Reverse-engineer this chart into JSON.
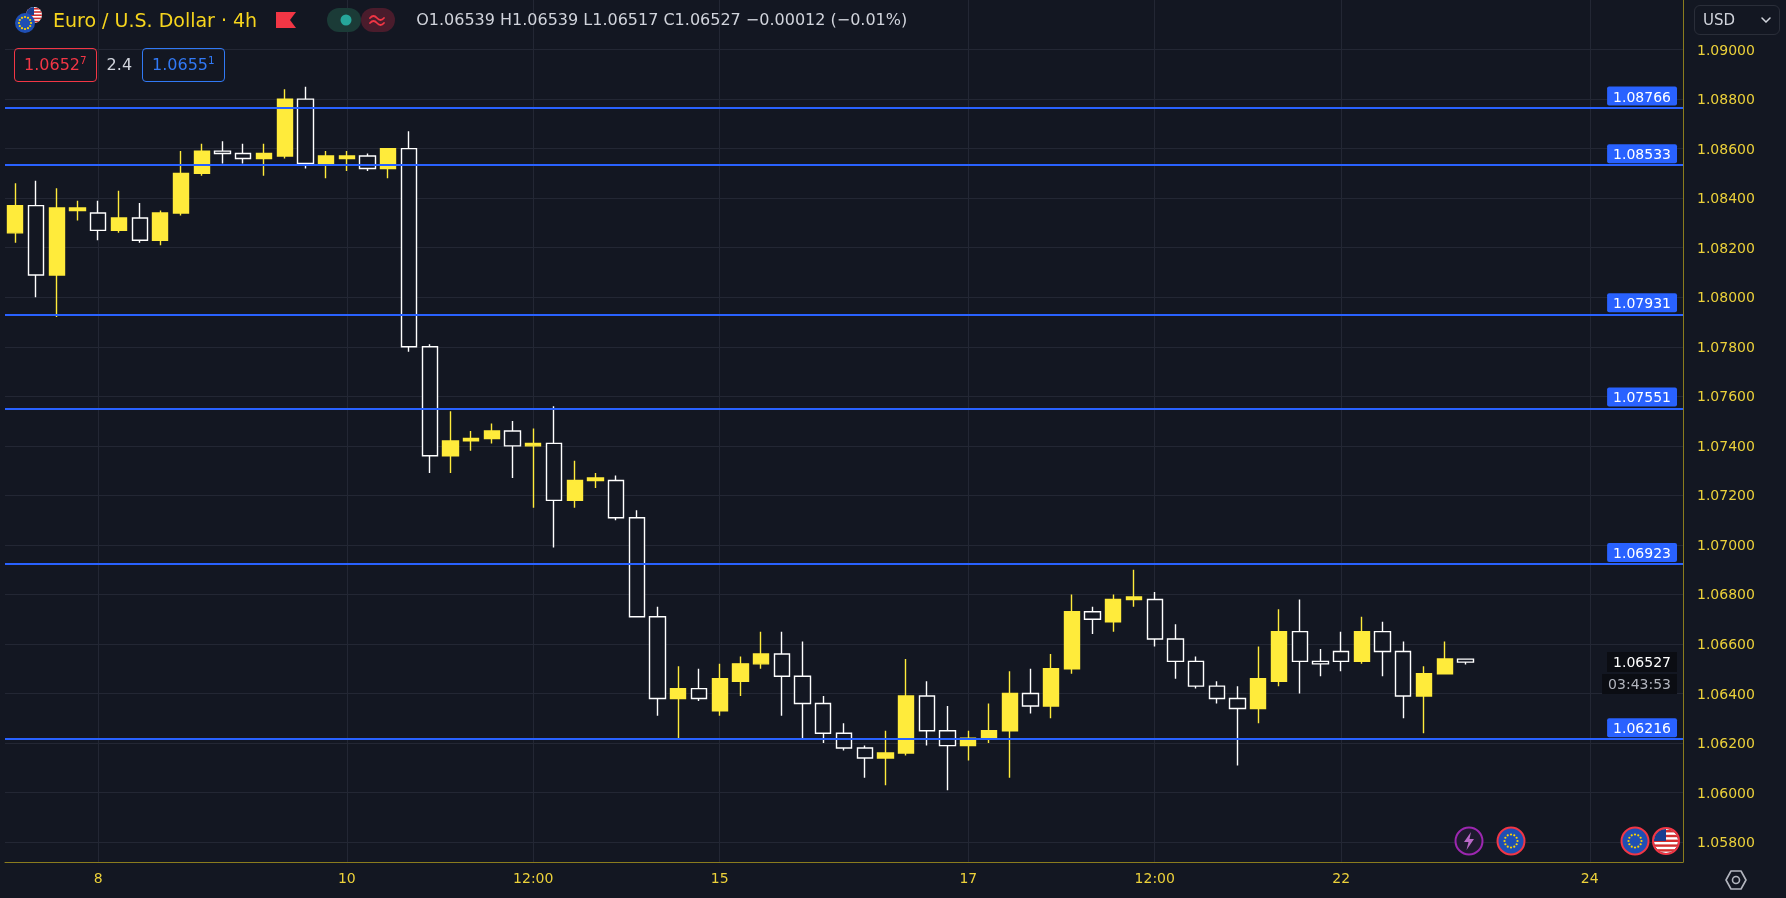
{
  "chart_data": {
    "type": "candlestick",
    "title": "Euro / U.S. Dollar · 4h",
    "subtitle": "O1.06539 H1.06539 L1.06517 C1.06527 −0.00012 (−0.01%)",
    "categories": [
      null,
      null,
      null,
      null,
      "8",
      null,
      null,
      null,
      null,
      null,
      null,
      null,
      null,
      null,
      null,
      null,
      "10",
      null,
      null,
      null,
      null,
      null,
      null,
      null,
      null,
      "12:00",
      null,
      null,
      null,
      null,
      null,
      null,
      null,
      null,
      "15",
      null,
      null,
      null,
      null,
      null,
      null,
      null,
      null,
      null,
      null,
      null,
      "17",
      null,
      null,
      null,
      null,
      null,
      null,
      null,
      null,
      "12:00",
      null,
      null,
      null,
      null,
      null,
      null,
      null,
      null,
      "22",
      null,
      null,
      null,
      null,
      null,
      null,
      null,
      null,
      null,
      null,
      null,
      "24",
      null,
      null,
      null,
      null
    ],
    "ohlc": [
      [
        1.0826,
        1.0846,
        1.0822,
        1.0837
      ],
      [
        1.0837,
        1.0847,
        1.08,
        1.0809
      ],
      [
        1.0809,
        1.0844,
        1.0792,
        1.0836
      ],
      [
        1.0835,
        1.0839,
        1.0831,
        1.0836
      ],
      [
        1.0834,
        1.0839,
        1.0823,
        1.0827
      ],
      [
        1.0827,
        1.0843,
        1.0826,
        1.0832
      ],
      [
        1.0832,
        1.0838,
        1.0822,
        1.0823
      ],
      [
        1.0823,
        1.0835,
        1.0821,
        1.0834
      ],
      [
        1.0834,
        1.0859,
        1.0833,
        1.085
      ],
      [
        1.085,
        1.0862,
        1.0849,
        1.0859
      ],
      [
        1.0859,
        1.0863,
        1.0854,
        1.0858
      ],
      [
        1.0858,
        1.0862,
        1.0854,
        1.0856
      ],
      [
        1.0856,
        1.0862,
        1.0849,
        1.0858
      ],
      [
        1.0857,
        1.0884,
        1.0856,
        1.088
      ],
      [
        1.088,
        1.0885,
        1.0852,
        1.0854
      ],
      [
        1.0854,
        1.0859,
        1.0848,
        1.0857
      ],
      [
        1.0856,
        1.0859,
        1.0851,
        1.0857
      ],
      [
        1.0857,
        1.0858,
        1.0851,
        1.0852
      ],
      [
        1.0852,
        1.086,
        1.0848,
        1.086
      ],
      [
        1.086,
        1.0867,
        1.0778,
        1.078
      ],
      [
        1.078,
        1.0781,
        1.0729,
        1.0736
      ],
      [
        1.0736,
        1.0754,
        1.0729,
        1.0742
      ],
      [
        1.0742,
        1.0746,
        1.0738,
        1.0743
      ],
      [
        1.0743,
        1.0749,
        1.0741,
        1.0746
      ],
      [
        1.0746,
        1.075,
        1.0727,
        1.074
      ],
      [
        1.074,
        1.0747,
        1.0715,
        1.0741
      ],
      [
        1.0741,
        1.0756,
        1.0699,
        1.0718
      ],
      [
        1.0718,
        1.0734,
        1.0715,
        1.0726
      ],
      [
        1.0726,
        1.0729,
        1.0723,
        1.0727
      ],
      [
        1.0726,
        1.0728,
        1.071,
        1.0711
      ],
      [
        1.0711,
        1.0714,
        1.0671,
        1.0671
      ],
      [
        1.0671,
        1.0675,
        1.0631,
        1.0638
      ],
      [
        1.0638,
        1.0651,
        1.0622,
        1.0642
      ],
      [
        1.0642,
        1.065,
        1.0637,
        1.0638
      ],
      [
        1.0633,
        1.0652,
        1.0631,
        1.0646
      ],
      [
        1.0645,
        1.0655,
        1.0639,
        1.0652
      ],
      [
        1.0652,
        1.0665,
        1.065,
        1.0656
      ],
      [
        1.0656,
        1.0665,
        1.0631,
        1.0647
      ],
      [
        1.0647,
        1.0661,
        1.0622,
        1.0636
      ],
      [
        1.0636,
        1.0639,
        1.062,
        1.0624
      ],
      [
        1.0624,
        1.0628,
        1.0617,
        1.0618
      ],
      [
        1.0618,
        1.0619,
        1.0606,
        1.0614
      ],
      [
        1.0614,
        1.0625,
        1.0603,
        1.0616
      ],
      [
        1.0616,
        1.0654,
        1.0615,
        1.0639
      ],
      [
        1.0639,
        1.0645,
        1.0619,
        1.0625
      ],
      [
        1.0625,
        1.0635,
        1.0601,
        1.0619
      ],
      [
        1.0619,
        1.0625,
        1.0613,
        1.0622
      ],
      [
        1.0622,
        1.0636,
        1.062,
        1.0625
      ],
      [
        1.0625,
        1.0649,
        1.0606,
        1.064
      ],
      [
        1.064,
        1.065,
        1.0632,
        1.0635
      ],
      [
        1.0635,
        1.0656,
        1.063,
        1.065
      ],
      [
        1.065,
        1.068,
        1.0648,
        1.0673
      ],
      [
        1.0673,
        1.0675,
        1.0664,
        1.067
      ],
      [
        1.0669,
        1.068,
        1.0665,
        1.0678
      ],
      [
        1.0678,
        1.069,
        1.0675,
        1.0679
      ],
      [
        1.0678,
        1.0681,
        1.0659,
        1.0662
      ],
      [
        1.0662,
        1.0668,
        1.0646,
        1.0653
      ],
      [
        1.0653,
        1.0655,
        1.0642,
        1.0643
      ],
      [
        1.0643,
        1.0645,
        1.0636,
        1.0638
      ],
      [
        1.0638,
        1.0643,
        1.0611,
        1.0634
      ],
      [
        1.0634,
        1.0659,
        1.0628,
        1.0646
      ],
      [
        1.0645,
        1.0674,
        1.0643,
        1.0665
      ],
      [
        1.0665,
        1.0678,
        1.064,
        1.0653
      ],
      [
        1.0653,
        1.0658,
        1.0647,
        1.0652
      ],
      [
        1.0657,
        1.0665,
        1.0649,
        1.0653
      ],
      [
        1.0653,
        1.0671,
        1.0652,
        1.0665
      ],
      [
        1.0665,
        1.0669,
        1.0647,
        1.0657
      ],
      [
        1.0657,
        1.0661,
        1.063,
        1.0639
      ],
      [
        1.0639,
        1.0651,
        1.0624,
        1.0648
      ],
      [
        1.0648,
        1.0661,
        1.0648,
        1.0654
      ],
      [
        1.06539,
        1.06539,
        1.06517,
        1.06527
      ],
      null,
      null,
      null,
      null,
      null,
      null,
      null,
      null,
      null,
      null
    ],
    "colors": [
      "#ffeb3b",
      "#ffffff",
      "#ffeb3b",
      "#ffeb3b",
      "#ffffff",
      "#ffeb3b",
      "#ffffff",
      "#ffeb3b",
      "#ffeb3b",
      "#ffeb3b",
      "#ffffff",
      "#ffffff",
      "#ffeb3b",
      "#ffeb3b",
      "#ffffff",
      "#ffeb3b",
      "#ffeb3b",
      "#ffffff",
      "#ffeb3b",
      "#ffffff",
      "#ffffff",
      "#ffeb3b",
      "#ffeb3b",
      "#ffeb3b",
      "#ffffff",
      "#ffeb3b",
      "#ffffff",
      "#ffeb3b",
      "#ffeb3b",
      "#ffffff",
      "#ffffff",
      "#ffffff",
      "#ffeb3b",
      "#ffffff",
      "#ffeb3b",
      "#ffeb3b",
      "#ffeb3b",
      "#ffffff",
      "#ffffff",
      "#ffffff",
      "#ffffff",
      "#ffffff",
      "#ffeb3b",
      "#ffeb3b",
      "#ffffff",
      "#ffffff",
      "#ffeb3b",
      "#ffeb3b",
      "#ffeb3b",
      "#ffffff",
      "#ffeb3b",
      "#ffeb3b",
      "#ffffff",
      "#ffeb3b",
      "#ffeb3b",
      "#ffffff",
      "#ffffff",
      "#ffffff",
      "#ffffff",
      "#ffffff",
      "#ffeb3b",
      "#ffeb3b",
      "#ffffff",
      "#ffffff",
      "#ffffff",
      "#ffeb3b",
      "#ffffff",
      "#ffffff",
      "#ffeb3b",
      "#ffeb3b",
      "#ffffff",
      null,
      null,
      null,
      null,
      null,
      null,
      null,
      null,
      null,
      null
    ],
    "ylim": [
      1.0572,
      1.092
    ],
    "yticks": [
      {
        "value": 1.058,
        "label": "1.05800"
      },
      {
        "value": 1.06,
        "label": "1.06000"
      },
      {
        "value": 1.062,
        "label": "1.06200"
      },
      {
        "value": 1.064,
        "label": "1.06400"
      },
      {
        "value": 1.066,
        "label": "1.06600"
      },
      {
        "value": 1.068,
        "label": "1.06800"
      },
      {
        "value": 1.07,
        "label": "1.07000"
      },
      {
        "value": 1.072,
        "label": "1.07200"
      },
      {
        "value": 1.074,
        "label": "1.07400"
      },
      {
        "value": 1.076,
        "label": "1.07600"
      },
      {
        "value": 1.078,
        "label": "1.07800"
      },
      {
        "value": 1.08,
        "label": "1.08000"
      },
      {
        "value": 1.082,
        "label": "1.08200"
      },
      {
        "value": 1.084,
        "label": "1.08400"
      },
      {
        "value": 1.086,
        "label": "1.08600"
      },
      {
        "value": 1.088,
        "label": "1.08800"
      },
      {
        "value": 1.09,
        "label": "1.09000"
      }
    ],
    "grid": true,
    "ref_lines": [
      {
        "axis": "y",
        "value": 1.08766,
        "label": "1.08766",
        "color": "#2962ff"
      },
      {
        "axis": "y",
        "value": 1.08533,
        "label": "1.08533",
        "color": "#2962ff"
      },
      {
        "axis": "y",
        "value": 1.07931,
        "label": "1.07931",
        "color": "#2962ff"
      },
      {
        "axis": "y",
        "value": 1.07551,
        "label": "1.07551",
        "color": "#2962ff"
      },
      {
        "axis": "y",
        "value": 1.06923,
        "label": "1.06923",
        "color": "#2962ff"
      },
      {
        "axis": "y",
        "value": 1.06216,
        "label": "1.06216",
        "color": "#2962ff"
      }
    ],
    "annotations": [
      "1.0652$^{7}$",
      "2.4",
      "1.0655$^{1}$",
      "USD",
      "1.06527",
      "03:43:53"
    ]
  }
}
